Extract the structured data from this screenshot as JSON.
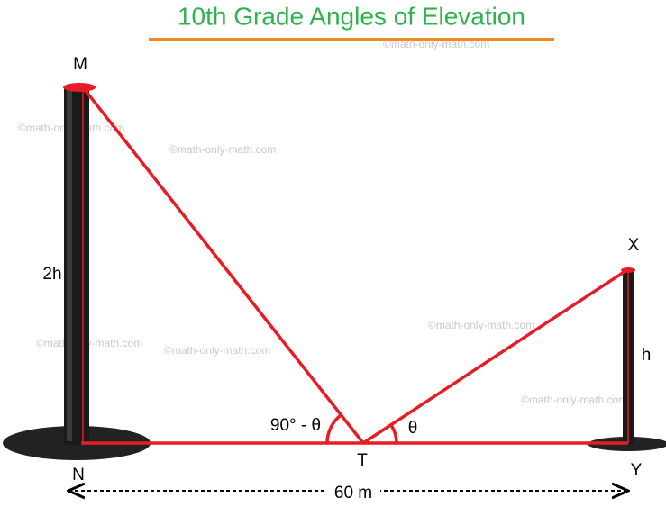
{
  "header": {
    "title": "10th Grade Angles of Elevation"
  },
  "points": {
    "M": "M",
    "N": "N",
    "T": "T",
    "X": "X",
    "Y": "Y"
  },
  "labels": {
    "tall_height": "2h",
    "short_height": "h",
    "left_angle": "90° - θ",
    "right_angle": "θ",
    "distance": "60 m"
  },
  "watermarks": [
    "©math-only-math.com",
    "©math-only-math.com",
    "©math-only-math.com",
    "©math-only-math.com",
    "©math-only-math.com",
    "©math-only-math.com",
    "©math-only-math.com"
  ]
}
